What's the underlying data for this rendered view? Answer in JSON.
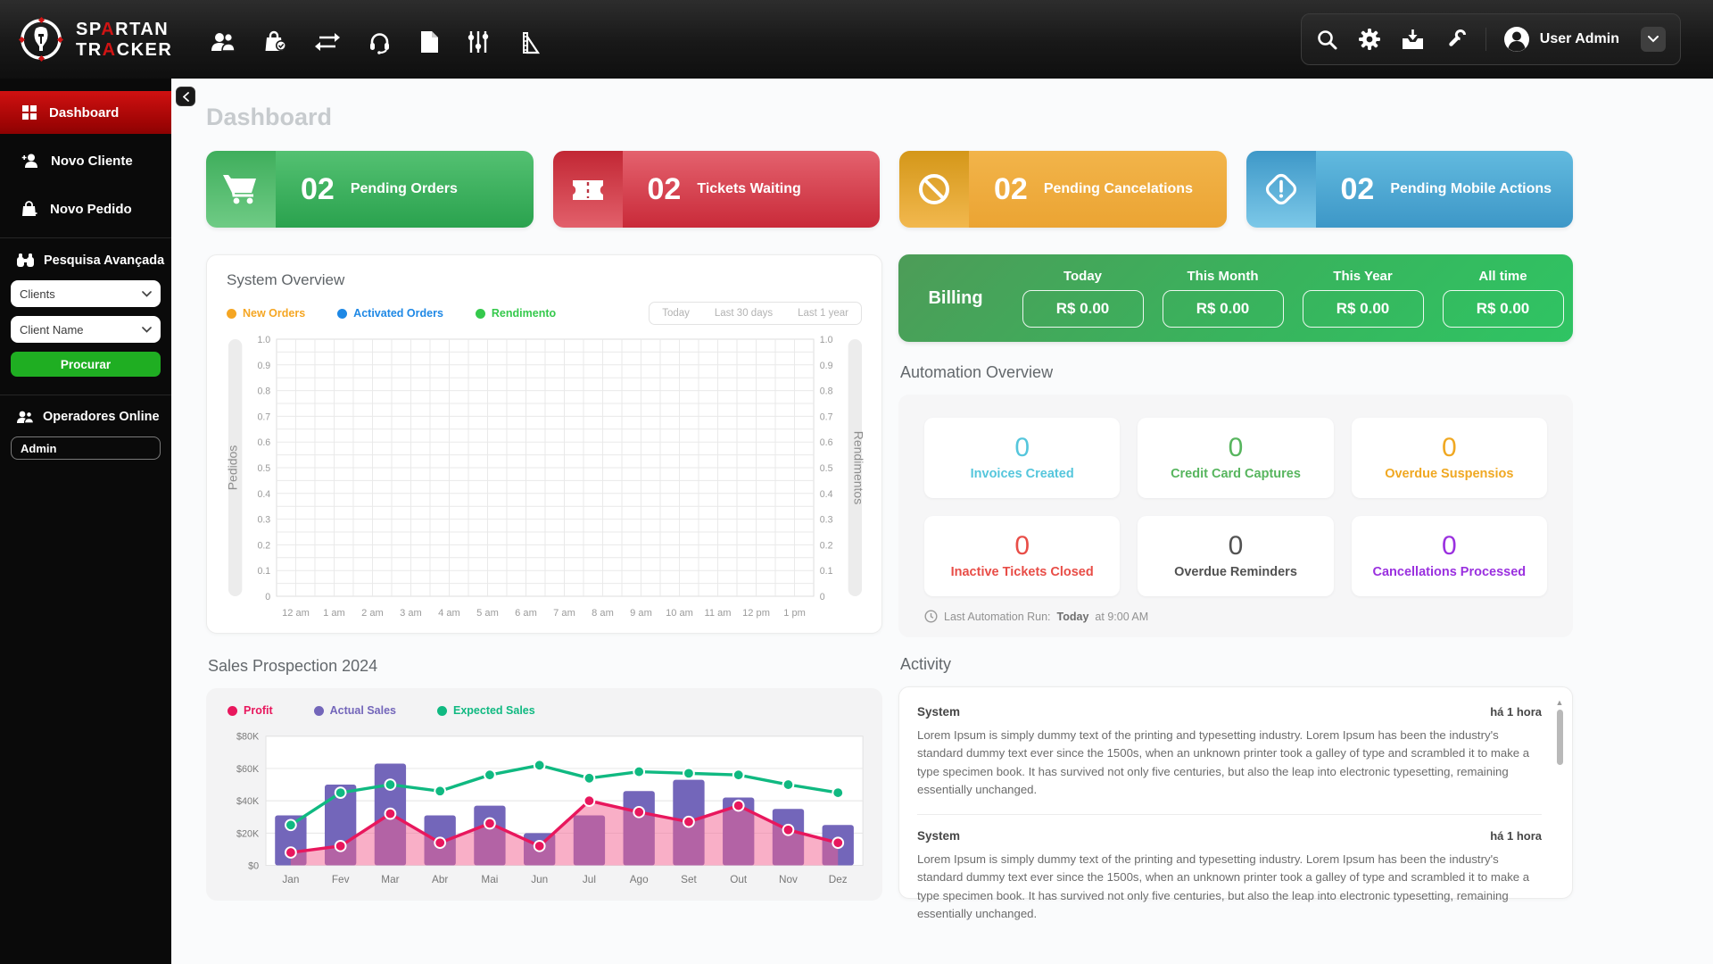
{
  "colors": {
    "brand_red": "#cf1414",
    "active_menu_red": "#c00b0b",
    "procurar_green": "#1fae22",
    "stat_green": "#3cb15f",
    "stat_red": "#d8404f",
    "stat_orange": "#efa93c",
    "stat_blue": "#4aa3d4",
    "billing_green": "#38b45d"
  },
  "header": {
    "logo": {
      "l1a": "SP",
      "l1b": "A",
      "l1c": "RTAN",
      "l2a": "TR",
      "l2b": "A",
      "l2c": "CKER"
    },
    "user_name": "User Admin"
  },
  "sidebar": {
    "items": [
      {
        "label": "Dashboard"
      },
      {
        "label": "Novo Cliente"
      },
      {
        "label": "Novo Pedido"
      }
    ],
    "search_section": {
      "title": "Pesquisa Avançada",
      "select_clients": "Clients",
      "select_client_name": "Client Name",
      "button_label": "Procurar"
    },
    "operators_section": {
      "title": "Operadores Online",
      "value": "Admin"
    }
  },
  "page": {
    "title": "Dashboard"
  },
  "stat_cards": [
    {
      "value": "02",
      "label": "Pending Orders",
      "icon": "cart-icon"
    },
    {
      "value": "02",
      "label": "Tickets Waiting",
      "icon": "ticket-icon"
    },
    {
      "value": "02",
      "label": "Pending Cancelations",
      "icon": "blocked-icon"
    },
    {
      "value": "02",
      "label": "Pending Mobile Actions",
      "icon": "alert-diamond-icon"
    }
  ],
  "system_overview": {
    "title": "System Overview",
    "legend": [
      {
        "label": "New Orders",
        "color": "#f5a623"
      },
      {
        "label": "Activated Orders",
        "color": "#1e88e5"
      },
      {
        "label": "Rendimento",
        "color": "#35c94c"
      }
    ],
    "range_tabs": [
      "Today",
      "Last 30 days",
      "Last 1 year"
    ]
  },
  "billing": {
    "title": "Billing",
    "periods": [
      {
        "label": "Today",
        "value": "R$ 0.00"
      },
      {
        "label": "This Month",
        "value": "R$ 0.00"
      },
      {
        "label": "This Year",
        "value": "R$ 0.00"
      },
      {
        "label": "All time",
        "value": "R$ 0.00"
      }
    ]
  },
  "automation": {
    "title": "Automation Overview",
    "items": [
      {
        "value": "0",
        "label": "Invoices Created",
        "color": "#55c6dc"
      },
      {
        "value": "0",
        "label": "Credit Card Captures",
        "color": "#57b55e"
      },
      {
        "value": "0",
        "label": "Overdue Suspensios",
        "color": "#f0a822"
      },
      {
        "value": "0",
        "label": "Inactive Tickets Closed",
        "color": "#e84d47"
      },
      {
        "value": "0",
        "label": "Overdue Reminders",
        "color": "#525252"
      },
      {
        "value": "0",
        "label": "Cancellations Processed",
        "color": "#9a30df"
      }
    ],
    "footer_prefix": "Last Automation Run:",
    "footer_bold": "Today",
    "footer_suffix": "at 9:00 AM"
  },
  "sales": {
    "title": "Sales Prospection 2024"
  },
  "activity": {
    "title": "Activity",
    "entries": [
      {
        "author": "System",
        "time": "há 1 hora",
        "text": "Lorem Ipsum is simply dummy text of the printing and typesetting industry. Lorem Ipsum has been the industry's standard dummy text ever since the 1500s, when an unknown printer took a galley of type and scrambled it to make a type specimen book. It has survived not only five centuries, but also the leap into electronic typesetting, remaining essentially unchanged."
      },
      {
        "author": "System",
        "time": "há 1 hora",
        "text": "Lorem Ipsum is simply dummy text of the printing and typesetting industry. Lorem Ipsum has been the industry's standard dummy text ever since the 1500s, when an unknown printer took a galley of type and scrambled it to make a type specimen book. It has survived not only five centuries, but also the leap into electronic typesetting, remaining essentially unchanged."
      }
    ]
  },
  "chart_data": [
    {
      "id": "system-overview",
      "type": "line",
      "title": "System Overview",
      "series": [
        {
          "name": "New Orders",
          "color": "#f5a623",
          "values": []
        },
        {
          "name": "Activated Orders",
          "color": "#1e88e5",
          "values": []
        },
        {
          "name": "Rendimento",
          "color": "#35c94c",
          "values": []
        }
      ],
      "x_labels": [
        "12 am",
        "1 am",
        "2 am",
        "3 am",
        "4 am",
        "5 am",
        "6 am",
        "7 am",
        "8 am",
        "9 am",
        "10 am",
        "11 am",
        "12 pm",
        "1 pm"
      ],
      "ylabel_left": "Pedidos",
      "ylabel_right": "Rendimentos",
      "y_ticks": [
        "1.0",
        "0.9",
        "0.8",
        "0.7",
        "0.6",
        "0.5",
        "0.4",
        "0.3",
        "0.2",
        "0.1",
        "0"
      ],
      "ylim": [
        0,
        1
      ],
      "grid": true,
      "note": "chart is empty - no data series plotted"
    },
    {
      "id": "sales-prospection",
      "type": "bar+line",
      "title": "Sales Prospection 2024",
      "categories": [
        "Jan",
        "Fev",
        "Mar",
        "Abr",
        "Mai",
        "Jun",
        "Jul",
        "Ago",
        "Set",
        "Out",
        "Nov",
        "Dez"
      ],
      "series": [
        {
          "name": "Actual Sales",
          "kind": "bar",
          "color": "#7366ba",
          "values": [
            31000,
            50000,
            63000,
            31000,
            37000,
            20000,
            31000,
            46000,
            53000,
            42000,
            35000,
            25000
          ]
        },
        {
          "name": "Profit",
          "kind": "area-line",
          "color": "#e8175d",
          "area_color": "rgba(243,96,144,0.5)",
          "values": [
            8000,
            12000,
            32000,
            14000,
            26000,
            12000,
            40000,
            33000,
            27000,
            37000,
            22000,
            14000
          ]
        },
        {
          "name": "Expected Sales",
          "kind": "line",
          "color": "#10b981",
          "values": [
            25000,
            45000,
            50000,
            46000,
            56000,
            62000,
            54000,
            58000,
            57000,
            56000,
            50000,
            45000
          ]
        }
      ],
      "y_ticks": [
        "$0",
        "$20K",
        "$40K",
        "$60K",
        "$80K"
      ],
      "ylim": [
        0,
        80000
      ],
      "legend": [
        {
          "label": "Profit",
          "color": "#e8175d"
        },
        {
          "label": "Actual Sales",
          "color": "#7366ba"
        },
        {
          "label": "Expected Sales",
          "color": "#10b981"
        }
      ],
      "grid": "horizontal"
    }
  ]
}
